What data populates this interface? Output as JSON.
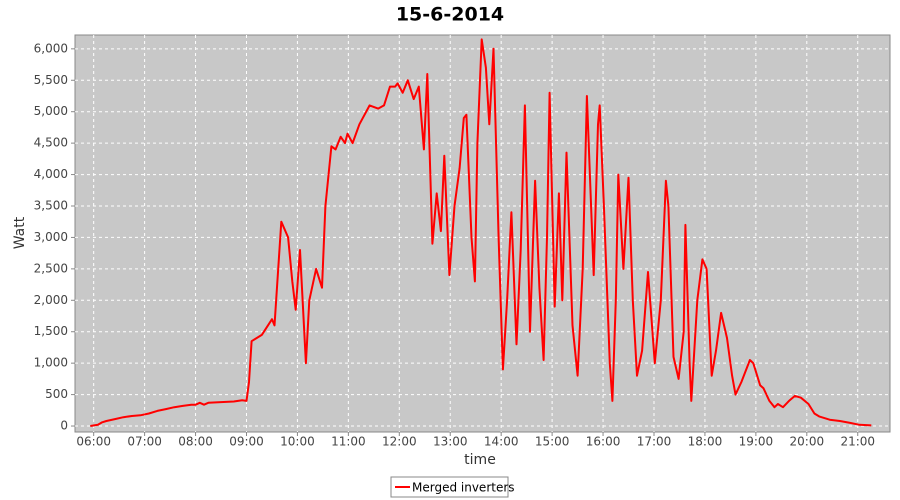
{
  "chart_data": {
    "type": "line",
    "title": "15-6-2014",
    "x_label": "time",
    "y_label": "Watt",
    "x": [
      "05:56",
      "06:05",
      "06:10",
      "06:15",
      "06:25",
      "06:35",
      "06:45",
      "06:55",
      "07:05",
      "07:15",
      "07:25",
      "07:35",
      "07:45",
      "07:55",
      "08:00",
      "08:05",
      "08:10",
      "08:15",
      "08:30",
      "08:45",
      "08:55",
      "09:00",
      "09:03",
      "09:06",
      "09:18",
      "09:30",
      "09:33",
      "09:41",
      "09:49",
      "09:54",
      "09:58",
      "10:03",
      "10:10",
      "10:14",
      "10:22",
      "10:29",
      "10:33",
      "10:40",
      "10:45",
      "10:51",
      "10:56",
      "10:59",
      "11:05",
      "11:13",
      "11:25",
      "11:35",
      "11:42",
      "11:49",
      "11:55",
      "11:58",
      "12:04",
      "12:10",
      "12:17",
      "12:23",
      "12:29",
      "12:33",
      "12:39",
      "12:44",
      "12:49",
      "12:53",
      "12:59",
      "13:05",
      "13:11",
      "13:16",
      "13:19",
      "13:25",
      "13:29",
      "13:32",
      "13:37",
      "13:42",
      "13:46",
      "13:51",
      "13:57",
      "14:02",
      "14:07",
      "14:12",
      "14:18",
      "14:23",
      "14:28",
      "14:34",
      "14:40",
      "14:45",
      "14:50",
      "14:54",
      "14:57",
      "15:03",
      "15:08",
      "15:12",
      "15:17",
      "15:24",
      "15:30",
      "15:36",
      "15:41",
      "15:49",
      "15:54",
      "15:56",
      "16:01",
      "16:08",
      "16:11",
      "16:15",
      "16:18",
      "16:24",
      "16:30",
      "16:35",
      "16:40",
      "16:46",
      "16:53",
      "17:01",
      "17:08",
      "17:14",
      "17:17",
      "17:23",
      "17:29",
      "17:35",
      "17:37",
      "17:42",
      "17:44",
      "17:51",
      "17:57",
      "18:02",
      "18:08",
      "18:13",
      "18:19",
      "18:26",
      "18:32",
      "18:36",
      "18:43",
      "18:53",
      "18:57",
      "19:05",
      "19:09",
      "19:16",
      "19:22",
      "19:26",
      "19:32",
      "19:39",
      "19:46",
      "19:53",
      "20:02",
      "20:09",
      "20:15",
      "20:27",
      "20:39",
      "20:51",
      "21:02",
      "21:16"
    ],
    "series": [
      {
        "name": "Merged inverters",
        "color": "#ff0000",
        "values": [
          0,
          20,
          60,
          80,
          110,
          140,
          160,
          170,
          200,
          240,
          270,
          300,
          320,
          340,
          340,
          370,
          340,
          370,
          380,
          390,
          410,
          400,
          700,
          1350,
          1450,
          1700,
          1600,
          3250,
          3000,
          2300,
          1850,
          2800,
          1000,
          2000,
          2500,
          2200,
          3500,
          4450,
          4400,
          4600,
          4500,
          4650,
          4500,
          4800,
          5100,
          5050,
          5100,
          5400,
          5400,
          5450,
          5300,
          5500,
          5200,
          5400,
          4400,
          5600,
          2900,
          3700,
          3100,
          4300,
          2400,
          3500,
          4100,
          4900,
          4950,
          3000,
          2300,
          4500,
          6150,
          5700,
          4800,
          6000,
          3000,
          900,
          2000,
          3400,
          1300,
          2800,
          5100,
          1500,
          3900,
          2200,
          1050,
          3000,
          5300,
          1900,
          3700,
          2000,
          4350,
          1600,
          800,
          2500,
          5250,
          2400,
          4800,
          5100,
          3500,
          1000,
          400,
          2000,
          4000,
          2500,
          3950,
          2000,
          800,
          1200,
          2450,
          1000,
          2000,
          3900,
          3500,
          1100,
          750,
          1500,
          3200,
          1000,
          400,
          2000,
          2650,
          2500,
          800,
          1200,
          1800,
          1400,
          800,
          500,
          700,
          1050,
          1000,
          650,
          600,
          400,
          300,
          350,
          300,
          400,
          480,
          450,
          350,
          200,
          150,
          100,
          80,
          50,
          20,
          10
        ]
      }
    ],
    "xlim": [
      "05:38",
      "21:38"
    ],
    "xticks": [
      "06:00",
      "07:00",
      "08:00",
      "09:00",
      "10:00",
      "11:00",
      "12:00",
      "13:00",
      "14:00",
      "15:00",
      "16:00",
      "17:00",
      "18:00",
      "19:00",
      "20:00",
      "21:00"
    ],
    "ylim": [
      -95,
      6220
    ],
    "yticks": [
      0,
      500,
      {
        "value": 1000,
        "label": "1,000"
      },
      {
        "value": 1500,
        "label": "1,500"
      },
      {
        "value": 2000,
        "label": "2,000"
      },
      {
        "value": 2500,
        "label": "2,500"
      },
      {
        "value": 3000,
        "label": "3,000"
      },
      {
        "value": 3500,
        "label": "3,500"
      },
      {
        "value": 4000,
        "label": "4,000"
      },
      {
        "value": 4500,
        "label": "4,500"
      },
      {
        "value": 5000,
        "label": "5,000"
      },
      {
        "value": 5500,
        "label": "5,500"
      },
      {
        "value": 6000,
        "label": "6,000"
      }
    ],
    "grid": true,
    "legend": "bottom"
  }
}
